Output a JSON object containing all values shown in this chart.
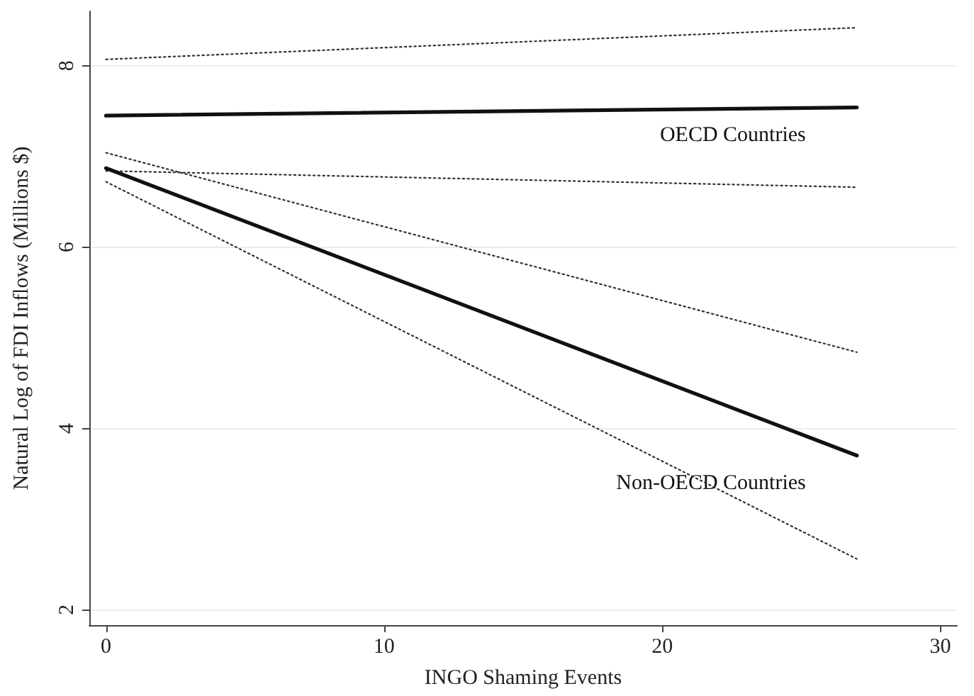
{
  "chart_data": {
    "type": "line",
    "xlabel": "INGO Shaming Events",
    "ylabel": "Natural Log of FDI Inflows (Millions $)",
    "x": [
      0,
      27
    ],
    "series": [
      {
        "name": "OECD Countries",
        "color": "#111111",
        "values": [
          7.45,
          7.54
        ],
        "line_style": "solid"
      },
      {
        "color": "#333333",
        "values": [
          8.07,
          8.42
        ],
        "line_style": "dotted"
      },
      {
        "color": "#333333",
        "values": [
          6.84,
          6.66
        ],
        "line_style": "dotted"
      },
      {
        "name": "Non-OECD Countries",
        "color": "#111111",
        "values": [
          6.87,
          3.7
        ],
        "line_style": "solid"
      },
      {
        "color": "#333333",
        "values": [
          7.04,
          4.84
        ],
        "line_style": "dotted"
      },
      {
        "color": "#333333",
        "values": [
          6.72,
          2.56
        ],
        "line_style": "dotted"
      }
    ],
    "xlim": [
      -0.6,
      30.6
    ],
    "ylim": [
      1.83,
      8.6
    ],
    "xticks": [
      0,
      10,
      20,
      30
    ],
    "yticks": [
      2,
      4,
      6,
      8
    ],
    "grid": "y",
    "marker": "none"
  }
}
